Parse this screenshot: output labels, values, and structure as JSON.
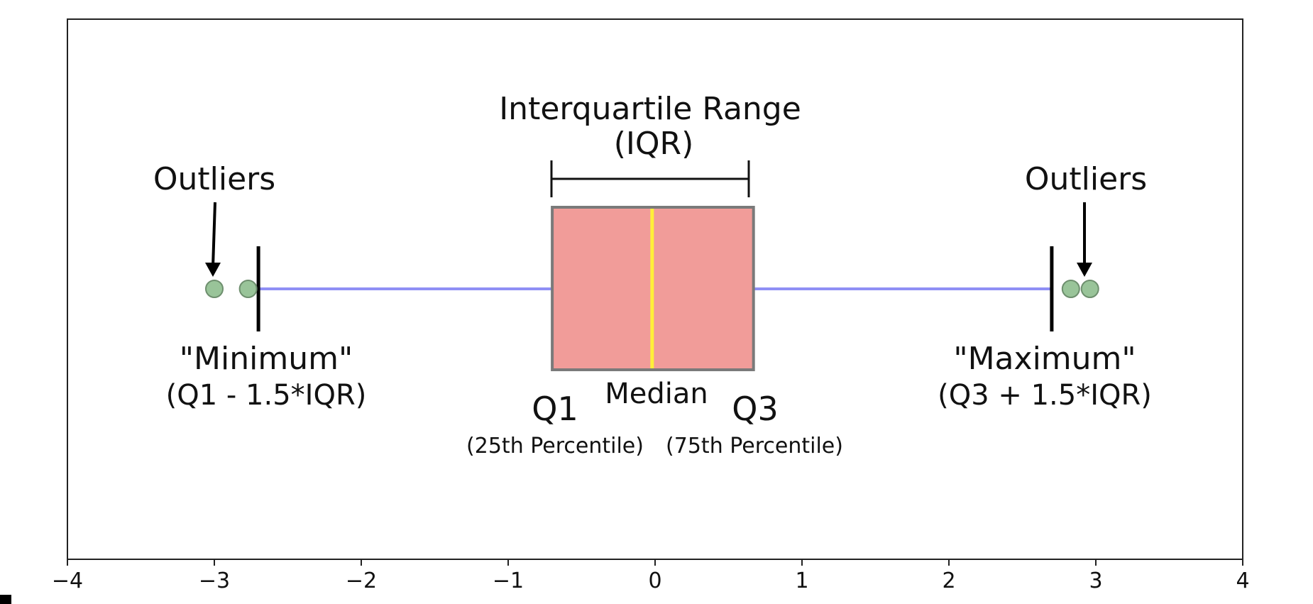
{
  "chart_data": {
    "type": "box",
    "title": "",
    "xlabel": "",
    "ylabel": "",
    "xlim": [
      -4,
      4
    ],
    "xticks": [
      -4,
      -3,
      -2,
      -1,
      0,
      1,
      2,
      3,
      4
    ],
    "xtick_labels": [
      "−4",
      "−3",
      "−2",
      "−1",
      "0",
      "1",
      "2",
      "3",
      "4"
    ],
    "box": {
      "q1": -0.7,
      "median": -0.02,
      "q3": 0.67,
      "whisker_low": -2.7,
      "whisker_high": 2.7
    },
    "outliers": [
      -3.0,
      -2.77,
      2.83,
      2.96
    ],
    "colors": {
      "box_fill": "#f19c99",
      "box_edge": "#7a7a7a",
      "median": "#ffef3a",
      "whisker": "#8f8ff5",
      "outlier_fill": "#99c499",
      "outlier_edge": "#6e8f6e"
    },
    "annotations": {
      "iqr_title": "Interquartile Range",
      "iqr_sub": "(IQR)",
      "outliers_left": "Outliers",
      "outliers_right": "Outliers",
      "minimum": "\"Minimum\"",
      "minimum_formula": "(Q1 - 1.5*IQR)",
      "maximum": "\"Maximum\"",
      "maximum_formula": "(Q3 + 1.5*IQR)",
      "median": "Median",
      "q1": "Q1",
      "q1_sub": "(25th Percentile)",
      "q3": "Q3",
      "q3_sub": "(75th Percentile)"
    }
  }
}
